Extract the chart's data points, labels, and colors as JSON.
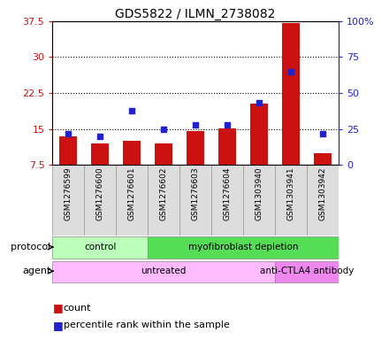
{
  "title": "GDS5822 / ILMN_2738082",
  "samples": [
    "GSM1276599",
    "GSM1276600",
    "GSM1276601",
    "GSM1276602",
    "GSM1276603",
    "GSM1276604",
    "GSM1303940",
    "GSM1303941",
    "GSM1303942"
  ],
  "count": [
    13.5,
    12.0,
    12.5,
    12.0,
    14.5,
    15.2,
    20.2,
    37.0,
    10.0
  ],
  "percentile": [
    22,
    20,
    38,
    25,
    28,
    28,
    43,
    65,
    22
  ],
  "ylim_left": [
    7.5,
    37.5
  ],
  "ylim_right": [
    0,
    100
  ],
  "yticks_left": [
    7.5,
    15.0,
    22.5,
    30.0,
    37.5
  ],
  "ytick_labels_left": [
    "7.5",
    "15",
    "22.5",
    "30",
    "37.5"
  ],
  "yticks_right": [
    0,
    25,
    50,
    75,
    100
  ],
  "ytick_labels_right": [
    "0",
    "25",
    "50",
    "75",
    "100%"
  ],
  "bar_color": "#cc1111",
  "dot_color": "#2222cc",
  "bar_bottom": 7.5,
  "grid_yticks": [
    15.0,
    22.5,
    30.0
  ],
  "protocol_groups": [
    {
      "label": "control",
      "start": 0,
      "end": 3,
      "color": "#bbffbb"
    },
    {
      "label": "myofibroblast depletion",
      "start": 3,
      "end": 9,
      "color": "#55dd55"
    }
  ],
  "agent_groups": [
    {
      "label": "untreated",
      "start": 0,
      "end": 7,
      "color": "#ffbbff"
    },
    {
      "label": "anti-CTLA4 antibody",
      "start": 7,
      "end": 9,
      "color": "#ee88ee"
    }
  ],
  "legend_count_label": "count",
  "legend_pct_label": "percentile rank within the sample",
  "left_axis_color": "#cc1111",
  "right_axis_color": "#2222cc",
  "sample_panel_color": "#dddddd",
  "sample_panel_edge_color": "#999999"
}
